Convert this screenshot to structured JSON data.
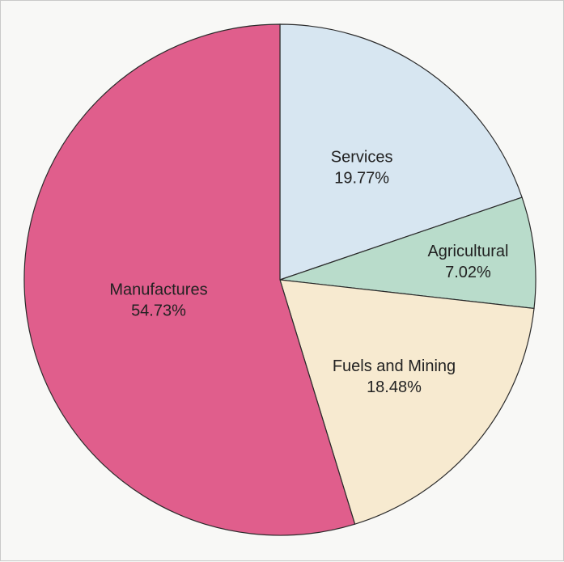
{
  "chart_data": {
    "type": "pie",
    "title": "",
    "slices": [
      {
        "label": "Services",
        "value": 19.77,
        "value_label": "19.77%",
        "color": "#d7e6f1"
      },
      {
        "label": "Agricultural",
        "value": 7.02,
        "value_label": "7.02%",
        "color": "#b9dccb"
      },
      {
        "label": "Fuels and Mining",
        "value": 18.48,
        "value_label": "18.48%",
        "color": "#f7ead0"
      },
      {
        "label": "Manufactures",
        "value": 54.73,
        "value_label": "54.73%",
        "color": "#e05e8c"
      }
    ],
    "start_angle": "12 o'clock",
    "direction": "clockwise",
    "legend": "none",
    "labels": "inside slices"
  }
}
